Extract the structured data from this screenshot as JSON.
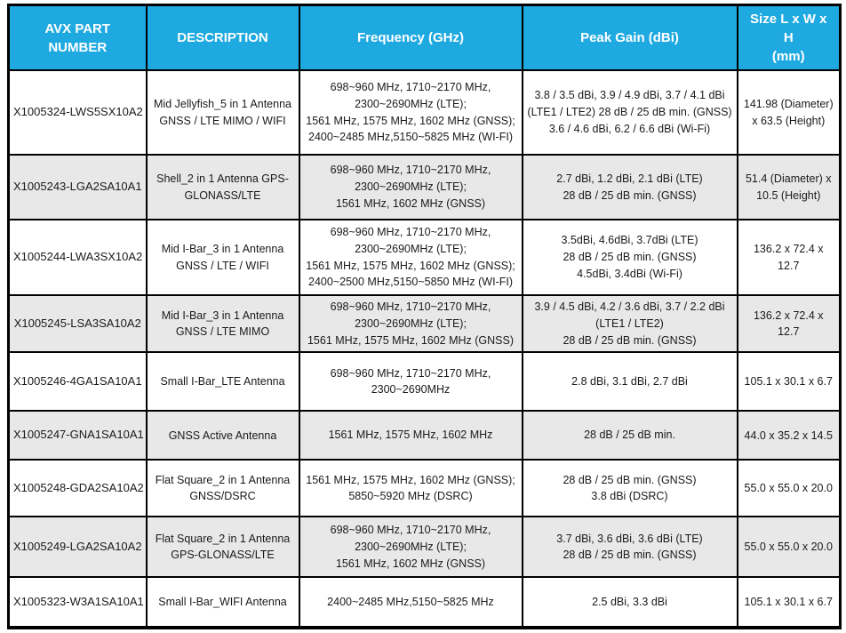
{
  "table": {
    "columns": [
      {
        "label": "AVX PART\nNUMBER"
      },
      {
        "label": "DESCRIPTION"
      },
      {
        "label": "Frequency (GHz)"
      },
      {
        "label": "Peak Gain (dBi)"
      },
      {
        "label": "Size L x W x H\n(mm)"
      }
    ],
    "rows": [
      {
        "part_number": "X1005324-LWS5SX10A2",
        "description": "Mid Jellyfish_5 in 1 Antenna GNSS / LTE MIMO / WIFI",
        "frequency": "698~960 MHz, 1710~2170 MHz,\n2300~2690MHz (LTE);\n1561 MHz, 1575 MHz, 1602 MHz (GNSS);\n2400~2485 MHz,5150~5825 MHz (WI-FI)",
        "peak_gain": "3.8 / 3.5 dBi, 3.9 / 4.9 dBi, 3.7 / 4.1 dBi\n(LTE1 / LTE2) 28 dB / 25 dB min. (GNSS)\n3.6 / 4.6 dBi, 6.2 / 6.6 dBi (Wi-Fi)",
        "size": "141.98 (Diameter) x 63.5 (Height)"
      },
      {
        "part_number": "X1005243-LGA2SA10A1",
        "description": "Shell_2 in 1 Antenna GPS-GLONASS/LTE",
        "frequency": "698~960 MHz, 1710~2170 MHz,\n2300~2690MHz (LTE);\n1561 MHz, 1602 MHz (GNSS)",
        "peak_gain": "2.7 dBi, 1.2 dBi, 2.1 dBi (LTE)\n28 dB / 25 dB min. (GNSS)",
        "size": "51.4 (Diameter) x 10.5 (Height)"
      },
      {
        "part_number": "X1005244-LWA3SX10A2",
        "description": "Mid I-Bar_3 in 1 Antenna GNSS / LTE / WIFI",
        "frequency": "698~960 MHz, 1710~2170 MHz,\n2300~2690MHz (LTE);\n1561 MHz, 1575 MHz, 1602 MHz (GNSS);\n2400~2500 MHz,5150~5850 MHz (WI-FI)",
        "peak_gain": "3.5dBi, 4.6dBi, 3.7dBi (LTE)\n28 dB / 25 dB min. (GNSS)\n4.5dBi, 3.4dBi (Wi-Fi)",
        "size": "136.2 x 72.4 x 12.7"
      },
      {
        "part_number": "X1005245-LSA3SA10A2",
        "description": "Mid I-Bar_3 in 1 Antenna GNSS / LTE MIMO",
        "frequency": "698~960 MHz, 1710~2170 MHz,\n2300~2690MHz (LTE);\n1561 MHz, 1575 MHz, 1602 MHz (GNSS)",
        "peak_gain": "3.9 / 4.5 dBi, 4.2 / 3.6 dBi, 3.7 / 2.2 dBi\n(LTE1 / LTE2)\n28 dB / 25 dB min. (GNSS)",
        "size": "136.2 x 72.4 x 12.7"
      },
      {
        "part_number": "X1005246-4GA1SA10A1",
        "description": "Small I-Bar_LTE Antenna",
        "frequency": "698~960 MHz, 1710~2170 MHz,\n2300~2690MHz",
        "peak_gain": "2.8 dBi, 3.1 dBi, 2.7 dBi",
        "size": "105.1 x 30.1 x 6.7"
      },
      {
        "part_number": "X1005247-GNA1SA10A1",
        "description": "GNSS Active Antenna",
        "frequency": "1561 MHz, 1575 MHz, 1602 MHz",
        "peak_gain": "28 dB / 25 dB min.",
        "size": "44.0 x 35.2 x 14.5"
      },
      {
        "part_number": "X1005248-GDA2SA10A2",
        "description": "Flat Square_2 in 1 Antenna GNSS/DSRC",
        "frequency": "1561 MHz, 1575 MHz, 1602 MHz (GNSS);\n5850~5920 MHz (DSRC)",
        "peak_gain": "28 dB / 25 dB min. (GNSS)\n3.8 dBi (DSRC)",
        "size": "55.0 x 55.0 x 20.0"
      },
      {
        "part_number": "X1005249-LGA2SA10A2",
        "description": "Flat Square_2 in 1 Antenna GPS-GLONASS/LTE",
        "frequency": "698~960 MHz, 1710~2170 MHz,\n2300~2690MHz (LTE);\n1561 MHz, 1602 MHz (GNSS)",
        "peak_gain": "3.7 dBi, 3.6 dBi, 3.6 dBi (LTE)\n28 dB / 25 dB min. (GNSS)",
        "size": "55.0 x 55.0 x 20.0"
      },
      {
        "part_number": "X1005323-W3A1SA10A1",
        "description": "Small I-Bar_WIFI Antenna",
        "frequency": "2400~2485 MHz,5150~5825 MHz",
        "peak_gain": "2.5 dBi, 3.3 dBi",
        "size": "105.1 x 30.1 x 6.7"
      }
    ]
  },
  "colors": {
    "header_bg": "#1EA9E0",
    "header_text": "#FFFFFF",
    "row_bg": "#FFFFFF",
    "row_alt_bg": "#E8E8E8",
    "border": "#000000",
    "body_text": "#1A1A1A"
  }
}
